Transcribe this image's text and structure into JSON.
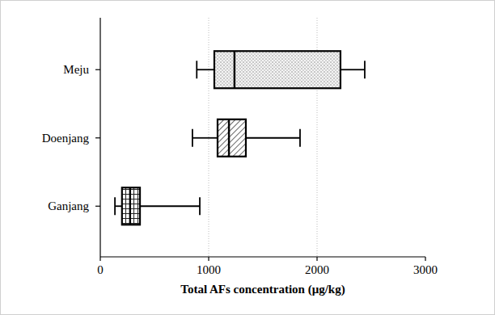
{
  "chart_data": {
    "type": "box",
    "orientation": "horizontal",
    "x_label": "Total AFs concentration (μg/kg)",
    "categories": [
      "Meju",
      "Doenjang",
      "Ganjang"
    ],
    "min": [
      890,
      850,
      135
    ],
    "q1": [
      1052,
      1082,
      200
    ],
    "median": [
      1238,
      1187,
      275
    ],
    "q3": [
      2216,
      1343,
      366
    ],
    "max": [
      2440,
      1843,
      918
    ],
    "xlim": [
      0,
      3000
    ],
    "xticks": [
      0,
      1000,
      2000,
      3000
    ],
    "grid": true
  }
}
